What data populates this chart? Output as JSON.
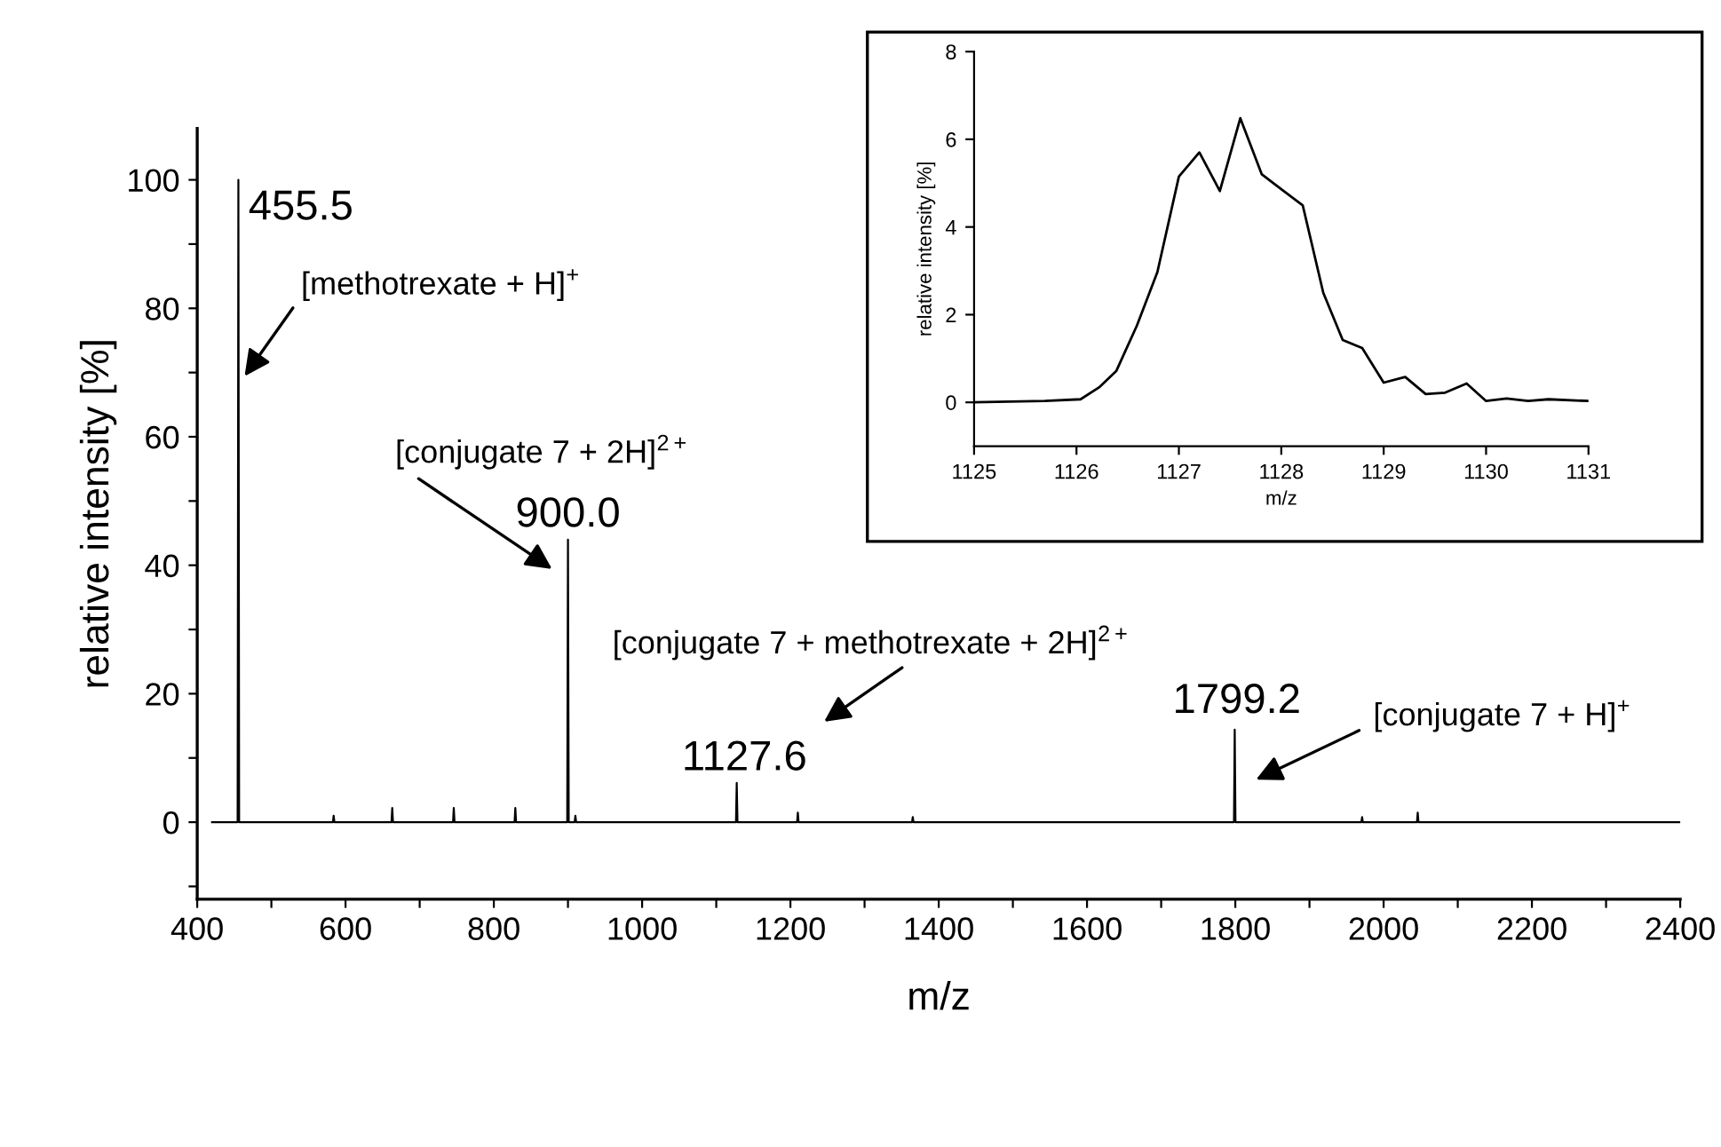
{
  "chart_data": [
    {
      "type": "line",
      "xlabel": "m/z",
      "ylabel": "relative intensity [%]",
      "series": [
        {
          "color": "#000000",
          "x": [
            420,
            454.5,
            455.5,
            456.5,
            583,
            584,
            585,
            662,
            663,
            664,
            745,
            746,
            747,
            828,
            829,
            830,
            899,
            900,
            901,
            909,
            910,
            911,
            1126.6,
            1127.6,
            1128.6,
            1209,
            1210,
            1211,
            1364,
            1365,
            1366,
            1798.2,
            1799.2,
            1800.2,
            1970,
            1971,
            1972,
            2045,
            2046,
            2047,
            2400
          ],
          "values": [
            0,
            0,
            100,
            0,
            0,
            1,
            0,
            0,
            2.2,
            0,
            0,
            2.2,
            0,
            0,
            2.2,
            0,
            0,
            44,
            0,
            0,
            1,
            0,
            0,
            6.1,
            0,
            0,
            1.5,
            0,
            0,
            0.8,
            0,
            0,
            14.4,
            0,
            0,
            0.8,
            0,
            0,
            1.5,
            0,
            0
          ]
        }
      ],
      "xlim": [
        400,
        2400
      ],
      "xticks": [
        400,
        {
          "value": 500,
          "label": null
        },
        600,
        {
          "value": 700,
          "label": null
        },
        800,
        {
          "value": 900,
          "label": null
        },
        1000,
        {
          "value": 1100,
          "label": null
        },
        1200,
        {
          "value": 1300,
          "label": null
        },
        1400,
        {
          "value": 1500,
          "label": null
        },
        1600,
        {
          "value": 1700,
          "label": null
        },
        1800,
        {
          "value": 1900,
          "label": null
        },
        2000,
        {
          "value": 2100,
          "label": null
        },
        2200,
        {
          "value": 2300,
          "label": null
        },
        2400
      ],
      "ylim": [
        -12,
        108
      ],
      "yticks": [
        {
          "value": -10,
          "label": null
        },
        0,
        {
          "value": 10,
          "label": null
        },
        20,
        {
          "value": 30,
          "label": null
        },
        40,
        {
          "value": 50,
          "label": null
        },
        60,
        {
          "value": 70,
          "label": null
        },
        80,
        {
          "value": 90,
          "label": null
        },
        100
      ],
      "annotations": [
        {
          "text": "455.5",
          "x": 455.5,
          "y": 100
        },
        {
          "text": "[methotrexate + H]$^{+}$",
          "x": 460,
          "y": 68.8
        },
        "[conjugate 7 + 2H]$^{2+}$",
        {
          "text": "900.0",
          "x": 900,
          "y": 44
        },
        "[conjugate 7 + methotrexate + 2H]$^{2+}$",
        {
          "text": "1127.6",
          "x": 1127.6,
          "y": 6.1
        },
        {
          "text": "1799.2",
          "x": 1799.2,
          "y": 14.4
        },
        "[conjugate 7 + H]$^{+}$"
      ]
    },
    {
      "type": "line",
      "xlabel": "m/z",
      "ylabel": "relative intensity [%]",
      "series": [
        {
          "color": "#000000",
          "x": [
            1125,
            1125.69,
            1126.04,
            1126.22,
            1126.39,
            1126.59,
            1126.79,
            1127.0,
            1127.2,
            1127.4,
            1127.6,
            1127.81,
            1128.0,
            1128.21,
            1128.41,
            1128.6,
            1128.79,
            1129.0,
            1129.21,
            1129.41,
            1129.6,
            1129.81,
            1130.0,
            1130.2,
            1130.41,
            1130.61,
            1131
          ],
          "values": [
            0,
            0.03,
            0.07,
            0.34,
            0.72,
            1.75,
            2.97,
            5.15,
            5.7,
            4.82,
            6.48,
            5.2,
            4.86,
            4.49,
            2.5,
            1.42,
            1.24,
            0.45,
            0.58,
            0.19,
            0.22,
            0.43,
            0.03,
            0.09,
            0.03,
            0.07,
            0.03
          ]
        }
      ],
      "xlim": [
        1125,
        1131
      ],
      "xticks": [
        1125,
        1126,
        1127,
        1128,
        1129,
        1130,
        1131
      ],
      "ylim": [
        -1,
        8
      ],
      "yticks": [
        0,
        2,
        4,
        6,
        8
      ]
    }
  ]
}
